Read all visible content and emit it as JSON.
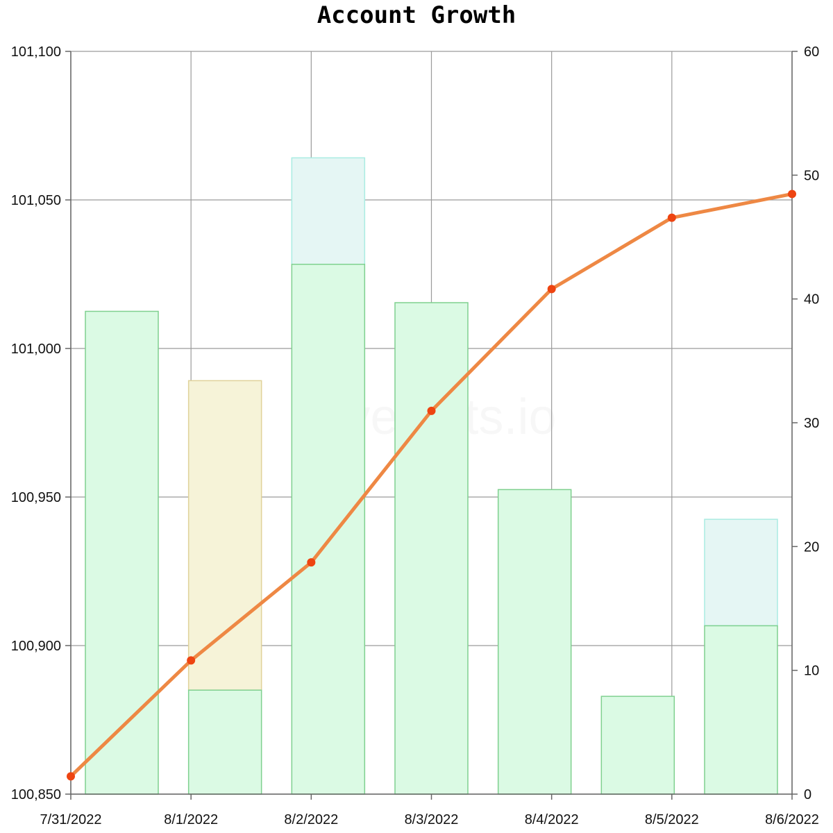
{
  "chart_data": {
    "type": "bar",
    "title": "Account Growth",
    "watermark": "hivestats.io",
    "xlabel": "",
    "ylabel": "",
    "categories": [
      "7/31/2022",
      "8/1/2022",
      "8/2/2022",
      "8/3/2022",
      "8/4/2022",
      "8/5/2022",
      "8/6/2022"
    ],
    "left_axis": {
      "ylim": [
        100850,
        101100
      ],
      "ticks": [
        "100,850",
        "100,900",
        "100,950",
        "101,000",
        "101,050",
        "101,100"
      ],
      "tick_values": [
        100850,
        100900,
        100950,
        101000,
        101050,
        101100
      ]
    },
    "right_axis": {
      "ylim": [
        0,
        60
      ],
      "ticks": [
        "0",
        "10",
        "20",
        "30",
        "40",
        "50",
        "60"
      ],
      "tick_values": [
        0,
        10,
        20,
        30,
        40,
        50,
        60
      ]
    },
    "line_series": {
      "axis": "left",
      "color": "#ee8844",
      "marker_color": "#ee4411",
      "points": [
        {
          "x": "7/31/2022",
          "y": 100856
        },
        {
          "x": "8/1/2022",
          "y": 100895
        },
        {
          "x": "8/2/2022",
          "y": 100928
        },
        {
          "x": "8/3/2022",
          "y": 100979
        },
        {
          "x": "8/4/2022",
          "y": 101020
        },
        {
          "x": "8/5/2022",
          "y": 101044
        },
        {
          "x": "8/6/2022",
          "y": 101052
        }
      ]
    },
    "bar_series": {
      "axis": "right",
      "bars": [
        {
          "day": "7/31/2022",
          "green": 39,
          "extra": null,
          "extra_color": null
        },
        {
          "day": "8/1/2022",
          "green": 8.4,
          "extra": 33.4,
          "extra_color": "yellow"
        },
        {
          "day": "8/2/2022",
          "green": 42.8,
          "extra": 51.4,
          "extra_color": "teal"
        },
        {
          "day": "8/3/2022",
          "green": 39.7,
          "extra": null,
          "extra_color": null
        },
        {
          "day": "8/4/2022",
          "green": 24.6,
          "extra": null,
          "extra_color": null
        },
        {
          "day": "8/5/2022",
          "green": 7.9,
          "extra": null,
          "extra_color": null
        },
        {
          "day": "8/6/2022",
          "green": 13.6,
          "extra": 22.2,
          "extra_color": "teal"
        }
      ]
    },
    "colors": {
      "green_fill": "#dbfae4",
      "green_stroke": "#7fd08f",
      "yellow_fill": "#f6f3d8",
      "yellow_stroke": "#e0d29a",
      "teal_fill": "#e5f6f4",
      "teal_stroke": "#a9ece2",
      "grid": "#9a9a9a",
      "axis": "#666666"
    },
    "grid": true
  }
}
